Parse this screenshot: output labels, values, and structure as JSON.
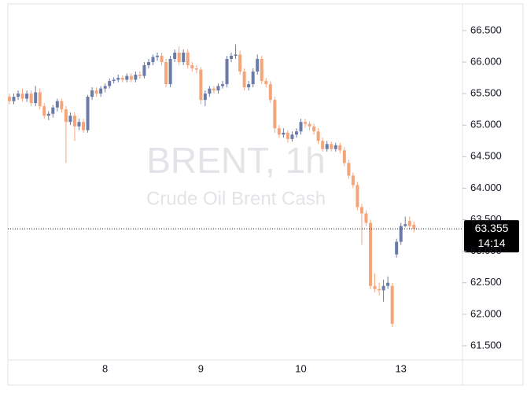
{
  "chart_data": {
    "type": "candlestick",
    "watermark_title": "BRENT, 1h",
    "watermark_subtitle": "Crude Oil Brent Cash",
    "up_color": "#6a7ba8",
    "down_color": "#f5a57a",
    "categories": [
      null,
      null,
      null,
      null,
      null,
      null,
      null,
      null,
      null,
      null,
      null,
      null,
      null,
      null,
      null,
      null,
      null,
      null,
      null,
      null,
      null,
      null,
      "8",
      null,
      null,
      null,
      null,
      null,
      null,
      null,
      null,
      null,
      null,
      null,
      null,
      null,
      null,
      null,
      null,
      null,
      null,
      null,
      null,
      null,
      "9",
      null,
      null,
      null,
      null,
      null,
      null,
      null,
      null,
      null,
      null,
      null,
      null,
      null,
      null,
      null,
      null,
      null,
      null,
      null,
      null,
      null,
      null,
      "10",
      null,
      null,
      null,
      null,
      null,
      null,
      null,
      null,
      null,
      null,
      null,
      null,
      null,
      null,
      null,
      null,
      null,
      null,
      null,
      null,
      null,
      null,
      "13",
      null,
      null,
      null
    ],
    "open": [
      65.45,
      65.38,
      65.45,
      65.5,
      65.42,
      65.5,
      65.35,
      65.52,
      65.3,
      65.15,
      65.18,
      65.28,
      65.38,
      65.25,
      65.05,
      65.15,
      64.98,
      65.05,
      64.92,
      65.45,
      65.55,
      65.5,
      65.58,
      65.62,
      65.7,
      65.72,
      65.75,
      65.72,
      65.78,
      65.72,
      65.8,
      65.78,
      65.95,
      66.0,
      66.08,
      66.1,
      66.0,
      65.65,
      66.05,
      66.15,
      66.0,
      66.15,
      65.95,
      65.9,
      65.88,
      65.4,
      65.5,
      65.58,
      65.55,
      65.62,
      65.65,
      66.05,
      66.1,
      66.12,
      65.85,
      65.6,
      65.65,
      65.85,
      66.05,
      65.7,
      65.65,
      65.4,
      64.95,
      64.85,
      64.88,
      64.78,
      64.85,
      64.9,
      65.05,
      65.02,
      64.98,
      64.9,
      64.75,
      64.62,
      64.7,
      64.62,
      64.68,
      64.6,
      64.4,
      64.2,
      64.05,
      63.7,
      63.6,
      63.45,
      62.45,
      62.4,
      62.38,
      62.45,
      62.45,
      62.95,
      63.15,
      63.4,
      63.48,
      63.42
    ],
    "high": [
      65.5,
      65.5,
      65.55,
      65.58,
      65.55,
      65.55,
      65.62,
      65.58,
      65.35,
      65.22,
      65.32,
      65.42,
      65.42,
      65.3,
      65.2,
      65.2,
      65.1,
      65.1,
      65.48,
      65.6,
      65.6,
      65.62,
      65.66,
      65.74,
      65.76,
      65.8,
      65.79,
      65.82,
      65.82,
      65.85,
      65.85,
      66.0,
      66.05,
      66.12,
      66.15,
      66.15,
      66.05,
      66.1,
      66.2,
      66.25,
      66.2,
      66.2,
      66.0,
      65.95,
      65.92,
      65.55,
      65.62,
      65.62,
      65.66,
      65.7,
      66.1,
      66.15,
      66.28,
      66.18,
      65.9,
      65.7,
      65.9,
      66.12,
      66.1,
      65.75,
      65.7,
      65.45,
      65.0,
      64.95,
      64.92,
      64.9,
      64.95,
      65.1,
      65.1,
      65.06,
      65.02,
      64.95,
      64.8,
      64.75,
      64.74,
      64.72,
      64.72,
      64.65,
      64.45,
      64.25,
      64.1,
      63.75,
      63.65,
      63.5,
      62.65,
      62.5,
      62.55,
      62.6,
      62.5,
      63.2,
      63.45,
      63.55,
      63.55,
      63.47
    ],
    "low": [
      65.33,
      65.33,
      65.4,
      65.37,
      65.37,
      65.3,
      65.3,
      65.25,
      65.1,
      65.08,
      65.12,
      65.22,
      65.2,
      64.4,
      65.0,
      64.75,
      64.92,
      64.88,
      64.88,
      65.4,
      65.45,
      65.45,
      65.52,
      65.58,
      65.66,
      65.68,
      65.68,
      65.68,
      65.68,
      65.68,
      65.74,
      65.74,
      65.9,
      65.95,
      66.02,
      65.95,
      65.6,
      65.6,
      66.0,
      65.95,
      65.95,
      65.9,
      65.85,
      65.82,
      65.33,
      65.3,
      65.45,
      65.5,
      65.5,
      65.58,
      65.6,
      66.0,
      66.05,
      65.8,
      65.55,
      65.55,
      65.6,
      65.8,
      65.65,
      65.6,
      65.35,
      64.88,
      64.8,
      64.8,
      64.72,
      64.74,
      64.8,
      64.85,
      64.96,
      64.92,
      64.85,
      64.7,
      64.58,
      64.58,
      64.58,
      64.58,
      64.55,
      64.35,
      64.15,
      64.0,
      63.65,
      63.1,
      63.4,
      62.4,
      62.35,
      62.3,
      62.2,
      62.4,
      61.8,
      62.9,
      63.1,
      63.38,
      63.35,
      63.3
    ],
    "close": [
      65.38,
      65.45,
      65.5,
      65.42,
      65.5,
      65.35,
      65.52,
      65.3,
      65.15,
      65.18,
      65.28,
      65.38,
      65.25,
      65.05,
      65.15,
      64.98,
      65.05,
      64.92,
      65.45,
      65.55,
      65.5,
      65.58,
      65.62,
      65.7,
      65.72,
      65.75,
      65.72,
      65.78,
      65.72,
      65.8,
      65.78,
      65.95,
      66.0,
      66.08,
      66.1,
      66.0,
      65.65,
      66.05,
      66.15,
      66.0,
      66.15,
      65.95,
      65.9,
      65.88,
      65.4,
      65.5,
      65.58,
      65.55,
      65.62,
      65.65,
      66.05,
      66.1,
      66.12,
      65.85,
      65.6,
      65.65,
      65.85,
      66.05,
      65.7,
      65.65,
      65.4,
      64.95,
      64.85,
      64.88,
      64.78,
      64.85,
      64.9,
      65.05,
      65.02,
      64.98,
      64.9,
      64.75,
      64.62,
      64.7,
      64.62,
      64.68,
      64.6,
      64.4,
      64.2,
      64.05,
      63.7,
      63.6,
      63.45,
      62.45,
      62.4,
      62.38,
      62.45,
      62.5,
      61.85,
      63.15,
      63.4,
      63.43,
      63.4,
      63.355
    ],
    "last_price": 63.355,
    "countdown": "14:14",
    "ylim": [
      61.25,
      66.86
    ],
    "yticks": [
      {
        "value": 61.5,
        "label": "61.500"
      },
      {
        "value": 62,
        "label": "62.000"
      },
      {
        "value": 62.5,
        "label": "62.500"
      },
      {
        "value": 63,
        "label": "63.000"
      },
      {
        "value": 63.5,
        "label": "63.500"
      },
      {
        "value": 64,
        "label": "64.000"
      },
      {
        "value": 64.5,
        "label": "64.500"
      },
      {
        "value": 65,
        "label": "65.000"
      },
      {
        "value": 65.5,
        "label": "65.500"
      },
      {
        "value": 66,
        "label": "66.000"
      },
      {
        "value": 66.5,
        "label": "66.500"
      }
    ]
  }
}
